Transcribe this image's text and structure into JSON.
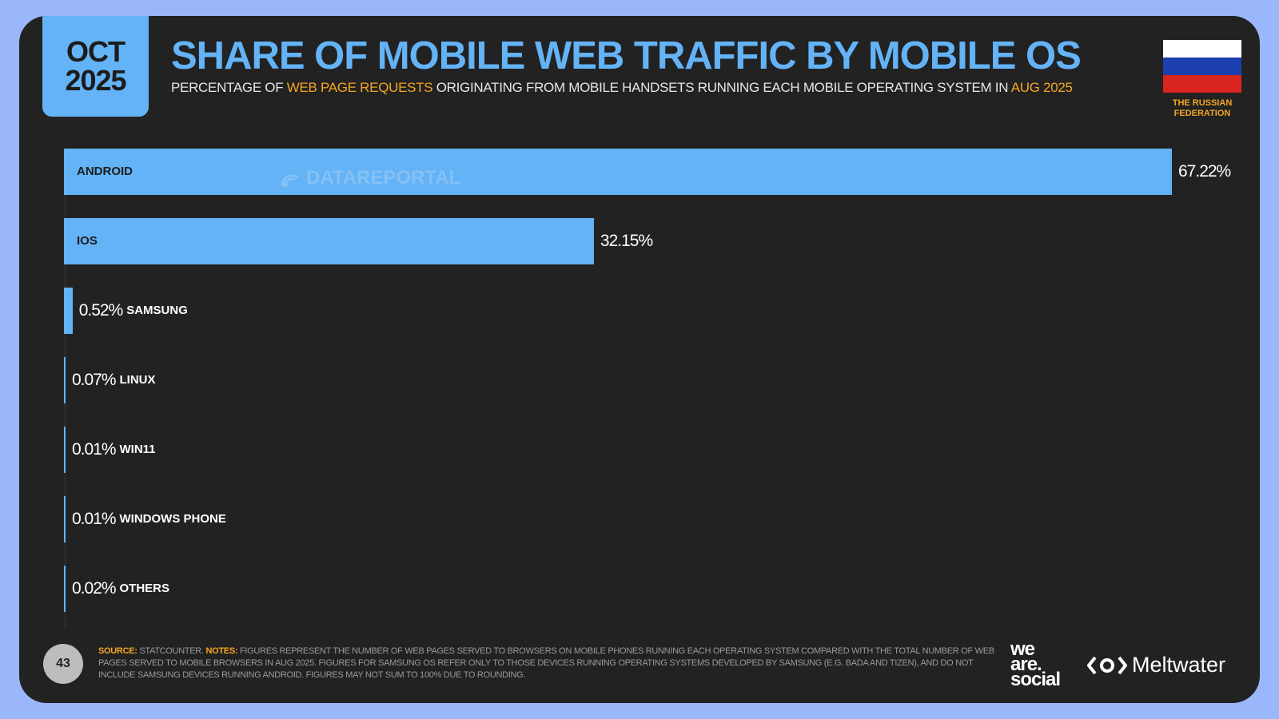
{
  "header": {
    "date_line1": "OCT",
    "date_line2": "2025",
    "title": "SHARE OF MOBILE WEB TRAFFIC BY MOBILE OS",
    "subtitle_part1": "PERCENTAGE OF ",
    "subtitle_highlight1": "WEB PAGE REQUESTS",
    "subtitle_part2": " ORIGINATING FROM MOBILE HANDSETS RUNNING EACH MOBILE OPERATING SYSTEM IN ",
    "subtitle_highlight2": "AUG 2025"
  },
  "country": {
    "line1": "THE RUSSIAN",
    "line2": "FEDERATION",
    "flag_colors": [
      "#ffffff",
      "#1c3fb0",
      "#d9251d"
    ]
  },
  "watermark": "DATAREPORTAL",
  "colors": {
    "bar": "#63b3f6",
    "accent": "#f5a623",
    "background": "#222222"
  },
  "chart_data": {
    "type": "bar",
    "orientation": "horizontal",
    "categories": [
      "ANDROID",
      "IOS",
      "SAMSUNG",
      "LINUX",
      "WIN11",
      "WINDOWS PHONE",
      "OTHERS"
    ],
    "values": [
      67.22,
      32.15,
      0.52,
      0.07,
      0.01,
      0.01,
      0.02
    ],
    "value_labels": [
      "67.22%",
      "32.15%",
      "0.52%",
      "0.07%",
      "0.01%",
      "0.01%",
      "0.02%"
    ],
    "xlim": [
      0,
      67.22
    ]
  },
  "footer": {
    "page_number": "43",
    "source_label": "SOURCE:",
    "source_text": " STATCOUNTER. ",
    "notes_label": "NOTES:",
    "notes_text": " FIGURES REPRESENT THE NUMBER OF WEB PAGES SERVED TO BROWSERS ON MOBILE PHONES RUNNING EACH OPERATING SYSTEM COMPARED WITH THE TOTAL NUMBER OF WEB PAGES SERVED TO MOBILE BROWSERS IN AUG 2025. FIGURES FOR SAMSUNG OS REFER ONLY TO THOSE DEVICES RUNNING OPERATING SYSTEMS DEVELOPED BY SAMSUNG (E.G. BADA AND TIZEN), AND DO NOT INCLUDE SAMSUNG DEVICES RUNNING ANDROID. FIGURES MAY NOT SUM TO 100% DUE TO ROUNDING.",
    "logo1_line1": "we",
    "logo1_line2": "are.",
    "logo1_line3": "social",
    "logo2": "Meltwater"
  }
}
